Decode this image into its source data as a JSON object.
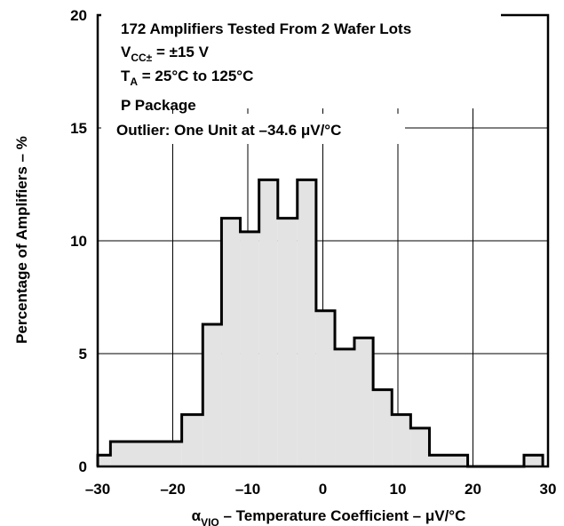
{
  "chart_data": {
    "type": "histogram",
    "xlabel_symbol": "α",
    "xlabel_subscript": "VIO",
    "xlabel_rest": " – Temperature Coefficient – μV/°C",
    "ylabel": "Percentage of Amplifiers – %",
    "xlim": [
      -30,
      30
    ],
    "ylim": [
      0,
      20
    ],
    "x_ticks": [
      -30,
      -20,
      -10,
      0,
      10,
      20,
      30
    ],
    "x_tick_labels": [
      "–30",
      "–20",
      "–10",
      "0",
      "10",
      "20",
      "30"
    ],
    "y_ticks": [
      0,
      5,
      10,
      15,
      20
    ],
    "y_tick_labels": [
      "0",
      "5",
      "10",
      "15",
      "20"
    ],
    "grid": true,
    "bin_width": 2.5,
    "bins": [
      {
        "x0": -30.0,
        "x1": -28.3,
        "value": 0.5
      },
      {
        "x0": -28.3,
        "x1": -18.8,
        "value": 1.1
      },
      {
        "x0": -18.8,
        "x1": -16.0,
        "value": 2.3
      },
      {
        "x0": -16.0,
        "x1": -13.5,
        "value": 6.3
      },
      {
        "x0": -13.5,
        "x1": -11.0,
        "value": 11.0
      },
      {
        "x0": -11.0,
        "x1": -8.5,
        "value": 10.4
      },
      {
        "x0": -8.5,
        "x1": -6.0,
        "value": 12.7
      },
      {
        "x0": -6.0,
        "x1": -3.4,
        "value": 11.0
      },
      {
        "x0": -3.4,
        "x1": -0.9,
        "value": 12.7
      },
      {
        "x0": -0.9,
        "x1": 1.6,
        "value": 6.9
      },
      {
        "x0": 1.6,
        "x1": 4.2,
        "value": 5.2
      },
      {
        "x0": 4.2,
        "x1": 6.7,
        "value": 5.7
      },
      {
        "x0": 6.7,
        "x1": 9.2,
        "value": 3.4
      },
      {
        "x0": 9.2,
        "x1": 11.7,
        "value": 2.3
      },
      {
        "x0": 11.7,
        "x1": 14.2,
        "value": 1.7
      },
      {
        "x0": 14.2,
        "x1": 19.3,
        "value": 0.5
      },
      {
        "x0": 19.3,
        "x1": 26.8,
        "value": 0.0
      },
      {
        "x0": 26.8,
        "x1": 29.3,
        "value": 0.5
      }
    ],
    "annotations": {
      "line1": "172 Amplifiers Tested From 2 Wafer Lots",
      "line2_main": "V",
      "line2_sub": "CC±",
      "line2_rest": " = ±15 V",
      "line3_main": "T",
      "line3_sub": "A",
      "line3_rest": " = 25°C to 125°C",
      "line4": "P Package",
      "line5": "Outlier: One Unit at –34.6 μV/°C"
    },
    "colors": {
      "fill": "#e3e3e3",
      "stroke": "#000000",
      "grid": "#000000"
    }
  }
}
